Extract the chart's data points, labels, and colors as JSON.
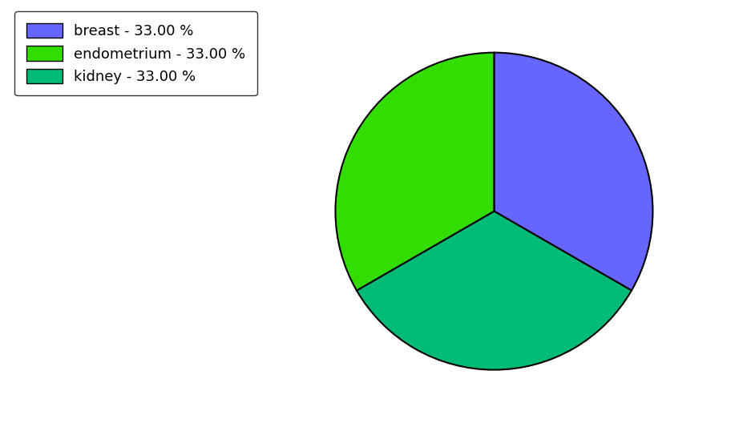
{
  "labels": [
    "breast",
    "kidney",
    "endometrium"
  ],
  "values": [
    33.0,
    33.0,
    33.0
  ],
  "colors": [
    "#6666ff",
    "#00bb77",
    "#33dd00"
  ],
  "legend_labels": [
    "breast - 33.00 %",
    "endometrium - 33.00 %",
    "kidney - 33.00 %"
  ],
  "legend_colors": [
    "#6666ff",
    "#33dd00",
    "#00bb77"
  ],
  "background_color": "#ffffff",
  "edgecolor": "#000000",
  "legend_fontsize": 13,
  "startangle": 90
}
